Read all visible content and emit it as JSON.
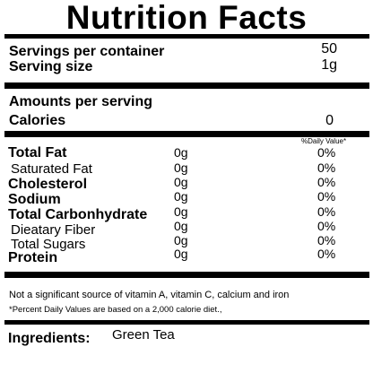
{
  "title": "Nutrition Facts",
  "servings": {
    "per_container_label": "Servings per container",
    "per_container_value": "50",
    "size_label": "Serving size",
    "size_value": "1g"
  },
  "amounts": {
    "heading": "Amounts per serving",
    "calories_label": "Calories",
    "calories_value": "0"
  },
  "daily_value_header": "%Daily Value*",
  "nutrients": [
    {
      "name": "Total Fat",
      "amount": "0g",
      "dv": "0%"
    },
    {
      "name": "Saturated Fat",
      "amount": "0g",
      "dv": "0%"
    },
    {
      "name": "Cholesterol",
      "amount": "0g",
      "dv": "0%"
    },
    {
      "name": "Sodium",
      "amount": "0g",
      "dv": "0%"
    },
    {
      "name": "Total Carbonhydrate",
      "amount": "0g",
      "dv": "0%"
    },
    {
      "name": "Dieatary Fiber",
      "amount": "0g",
      "dv": "0%"
    },
    {
      "name": "Total Sugars",
      "amount": "0g",
      "dv": "0%"
    },
    {
      "name": "Protein",
      "amount": "0g",
      "dv": "0%"
    }
  ],
  "footnotes": {
    "vitamins": "Not a significant source of vitamin A, vitamin C, calcium and iron",
    "percent_dv": "*Percent Daily Values are based on a 2,000 calorie diet.,"
  },
  "ingredients": {
    "label": "Ingredients:",
    "value": "Green Tea"
  }
}
